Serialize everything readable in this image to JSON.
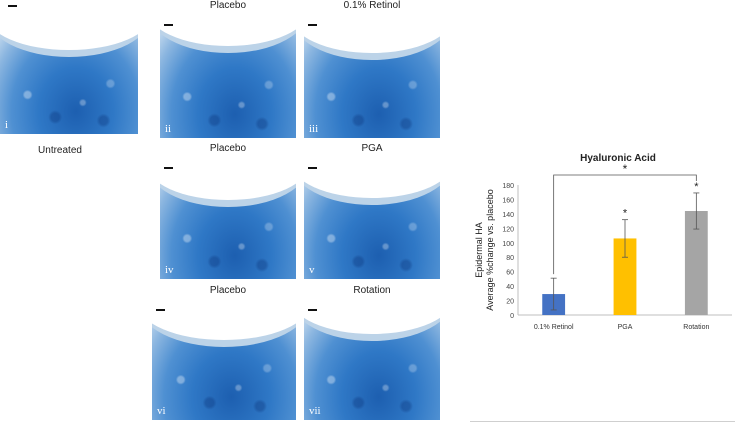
{
  "panels": [
    {
      "roman": "i",
      "caption": "Untreated"
    },
    {
      "roman": "ii",
      "caption": "Placebo"
    },
    {
      "roman": "iii",
      "caption": "0.1% Retinol"
    },
    {
      "roman": "iv",
      "caption": "Placebo"
    },
    {
      "roman": "v",
      "caption": "PGA"
    },
    {
      "roman": "vi",
      "caption": "Placebo"
    },
    {
      "roman": "vii",
      "caption": "Rotation"
    }
  ],
  "chart_data": {
    "type": "bar",
    "title": "Hyaluronic Acid",
    "ylabel_line1": "Epidermal HA",
    "ylabel_line2": "Average %change vs. placebo",
    "xlabel": "",
    "categories": [
      "0.1% Retinol",
      "PGA",
      "Rotation"
    ],
    "values": [
      29,
      106,
      144
    ],
    "errors": [
      22,
      26,
      25
    ],
    "colors": [
      "#4472c4",
      "#ffc000",
      "#a5a5a5"
    ],
    "ylim": [
      0,
      180
    ],
    "yticks": [
      0,
      20,
      40,
      60,
      80,
      100,
      120,
      140,
      160,
      180
    ],
    "significance_markers": [
      "",
      "*",
      "*"
    ],
    "bracket_label": "*",
    "grid": false,
    "legend": "none"
  }
}
